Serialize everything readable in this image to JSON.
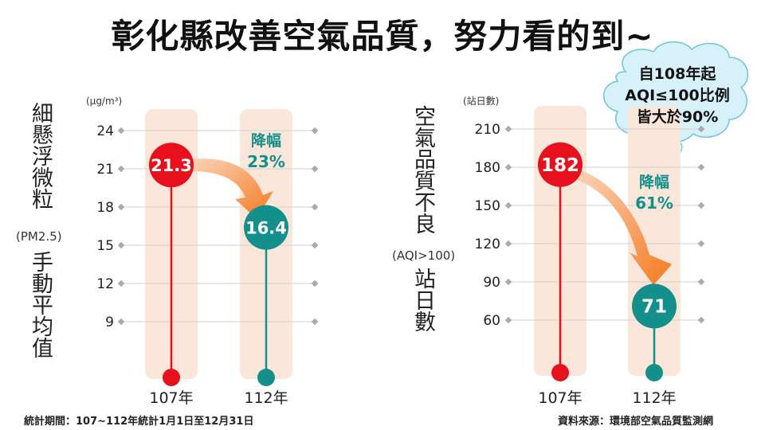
{
  "title": "彰化縣改善空氣品質，努力看的到~",
  "chart_data": [
    {
      "type": "lollipop",
      "title_part1": "細懸浮微粒",
      "title_part2": "(PM2.5)",
      "title_part3": "手動平均值",
      "unit": "(μg/m³)",
      "categories": [
        "107年",
        "112年"
      ],
      "values": [
        21.3,
        16.4
      ],
      "value_labels": [
        "21.3",
        "16.4"
      ],
      "yticks": [
        24,
        21,
        18,
        15,
        12,
        9
      ],
      "ylim": [
        6,
        24
      ],
      "change_label": "降幅",
      "change_value": "23%",
      "colors": [
        "#e8101c",
        "#14908c"
      ]
    },
    {
      "type": "lollipop",
      "title_part1": "空氣品質不良",
      "title_part2": "(AQI>100)",
      "title_part3": "站日數",
      "unit": "(站日數)",
      "categories": [
        "107年",
        "112年"
      ],
      "values": [
        182,
        71
      ],
      "value_labels": [
        "182",
        "71"
      ],
      "yticks": [
        210,
        180,
        150,
        120,
        90,
        60
      ],
      "ylim": [
        30,
        210
      ],
      "change_label": "降幅",
      "change_value": "61%",
      "colors": [
        "#e8101c",
        "#14908c"
      ]
    }
  ],
  "callout": {
    "line1": "自108年起",
    "line2": "AQI≤100比例",
    "line3": "皆大於90%"
  },
  "footer": {
    "period": "統計期間：107~112年統計1月1日至12月31日",
    "source": "資料來源：環境部空氣品質監測網"
  }
}
